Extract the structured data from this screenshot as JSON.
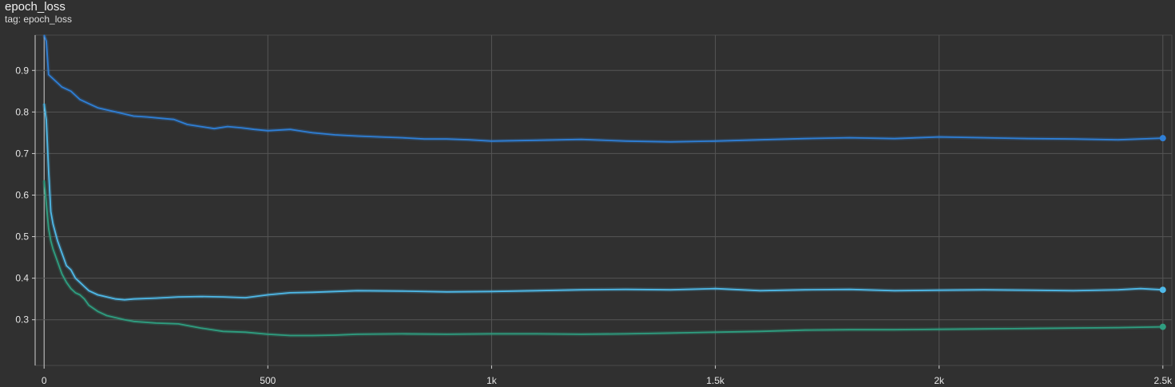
{
  "header": {
    "title": "epoch_loss",
    "tag": "tag: epoch_loss"
  },
  "chart_data": {
    "type": "line",
    "title": "epoch_loss",
    "xlabel": "",
    "ylabel": "",
    "xlim": [
      -20,
      2520
    ],
    "ylim": [
      0.19,
      0.985
    ],
    "x_ticks": [
      0,
      500,
      1000,
      1500,
      2000,
      2500
    ],
    "x_tick_labels": [
      "0",
      "500",
      "1k",
      "1.5k",
      "2k",
      "2.5k"
    ],
    "y_ticks": [
      0.3,
      0.4,
      0.5,
      0.6,
      0.7,
      0.8,
      0.9
    ],
    "y_tick_labels": [
      "0.3",
      "0.4",
      "0.5",
      "0.6",
      "0.7",
      "0.8",
      "0.9"
    ],
    "grid": true,
    "series": [
      {
        "color": "#2f7fd6",
        "x": [
          0,
          5,
          10,
          20,
          30,
          40,
          50,
          60,
          70,
          80,
          90,
          100,
          120,
          140,
          160,
          180,
          200,
          230,
          260,
          290,
          320,
          350,
          380,
          410,
          440,
          470,
          500,
          550,
          600,
          650,
          700,
          750,
          800,
          850,
          900,
          950,
          1000,
          1100,
          1200,
          1300,
          1400,
          1500,
          1600,
          1700,
          1800,
          1900,
          2000,
          2100,
          2200,
          2300,
          2400,
          2500
        ],
        "y": [
          0.985,
          0.97,
          0.89,
          0.88,
          0.87,
          0.86,
          0.855,
          0.85,
          0.84,
          0.83,
          0.825,
          0.82,
          0.81,
          0.805,
          0.8,
          0.795,
          0.79,
          0.788,
          0.785,
          0.782,
          0.77,
          0.765,
          0.76,
          0.765,
          0.762,
          0.758,
          0.755,
          0.758,
          0.75,
          0.745,
          0.742,
          0.74,
          0.738,
          0.735,
          0.735,
          0.733,
          0.73,
          0.732,
          0.734,
          0.73,
          0.728,
          0.73,
          0.733,
          0.736,
          0.738,
          0.736,
          0.74,
          0.738,
          0.736,
          0.735,
          0.733,
          0.737
        ]
      },
      {
        "color": "#4fb9e8",
        "x": [
          0,
          5,
          10,
          15,
          20,
          30,
          40,
          50,
          60,
          70,
          80,
          90,
          100,
          120,
          140,
          160,
          180,
          200,
          250,
          300,
          350,
          400,
          450,
          500,
          550,
          600,
          650,
          700,
          800,
          900,
          1000,
          1100,
          1200,
          1300,
          1400,
          1500,
          1600,
          1700,
          1800,
          1900,
          2000,
          2100,
          2200,
          2300,
          2400,
          2450,
          2500
        ],
        "y": [
          0.82,
          0.78,
          0.66,
          0.56,
          0.53,
          0.49,
          0.46,
          0.43,
          0.42,
          0.4,
          0.39,
          0.38,
          0.37,
          0.36,
          0.355,
          0.35,
          0.348,
          0.35,
          0.352,
          0.355,
          0.356,
          0.355,
          0.353,
          0.36,
          0.365,
          0.366,
          0.368,
          0.37,
          0.369,
          0.367,
          0.368,
          0.37,
          0.372,
          0.373,
          0.372,
          0.375,
          0.37,
          0.372,
          0.373,
          0.37,
          0.371,
          0.372,
          0.371,
          0.37,
          0.372,
          0.375,
          0.372
        ]
      },
      {
        "color": "#2f9e80",
        "x": [
          0,
          5,
          10,
          15,
          20,
          30,
          40,
          50,
          60,
          70,
          80,
          90,
          100,
          120,
          140,
          160,
          180,
          200,
          250,
          300,
          350,
          400,
          450,
          500,
          550,
          600,
          650,
          700,
          800,
          900,
          1000,
          1100,
          1200,
          1300,
          1400,
          1500,
          1600,
          1700,
          1800,
          1900,
          2000,
          2100,
          2200,
          2300,
          2400,
          2500
        ],
        "y": [
          0.635,
          0.58,
          0.52,
          0.49,
          0.47,
          0.44,
          0.41,
          0.39,
          0.375,
          0.365,
          0.36,
          0.35,
          0.335,
          0.32,
          0.31,
          0.305,
          0.3,
          0.296,
          0.292,
          0.29,
          0.28,
          0.272,
          0.27,
          0.265,
          0.262,
          0.262,
          0.263,
          0.265,
          0.266,
          0.265,
          0.266,
          0.266,
          0.265,
          0.266,
          0.268,
          0.27,
          0.272,
          0.275,
          0.276,
          0.276,
          0.277,
          0.278,
          0.279,
          0.28,
          0.281,
          0.283
        ]
      }
    ]
  }
}
